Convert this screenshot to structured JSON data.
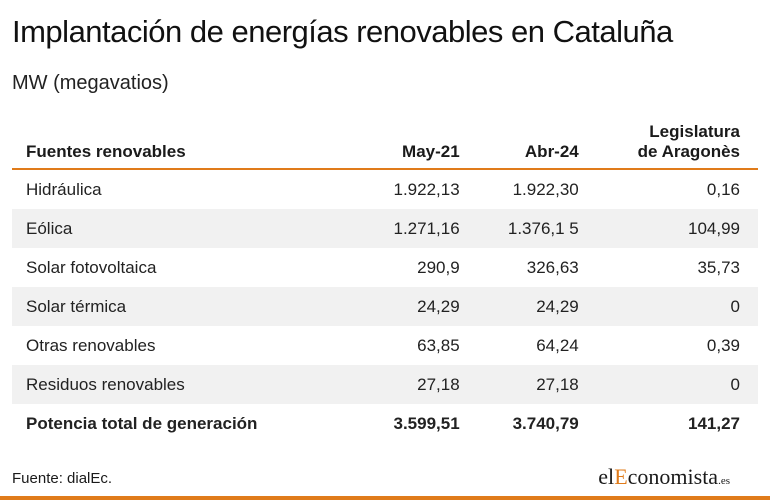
{
  "header": {
    "title": "Implantación de energías renovables en Cataluña",
    "subtitle": "MW (megavatios)"
  },
  "chart_data": {
    "type": "table",
    "columns": [
      "Fuentes renovables",
      "May-21",
      "Abr-24",
      "Legislatura de Aragonès"
    ],
    "column_header_lines": [
      [
        "Fuentes renovables"
      ],
      [
        "May-21"
      ],
      [
        "Abr-24"
      ],
      [
        "Legislatura",
        "de Aragonès"
      ]
    ],
    "rows": [
      [
        "Hidráulica",
        "1.922,13",
        "1.922,30",
        "0,16"
      ],
      [
        "Eólica",
        "1.271,16",
        "1.376,1 5",
        "104,99"
      ],
      [
        "Solar fotovoltaica",
        "290,9",
        "326,63",
        "35,73"
      ],
      [
        "Solar térmica",
        "24,29",
        "24,29",
        "0"
      ],
      [
        "Otras renovables",
        "63,85",
        "64,24",
        "0,39"
      ],
      [
        "Residuos renovables",
        "27,18",
        "27,18",
        "0"
      ],
      [
        "Potencia total de generación",
        "3.599,51",
        "3.740,79",
        "141,27"
      ]
    ]
  },
  "footer": {
    "source": "Fuente: dialEc.",
    "logo_el": "el",
    "logo_e": "E",
    "logo_rest": "conomista",
    "logo_domain": ".es"
  },
  "colors": {
    "accent": "#e07b1a",
    "row_stripe": "#f1f1f1"
  }
}
